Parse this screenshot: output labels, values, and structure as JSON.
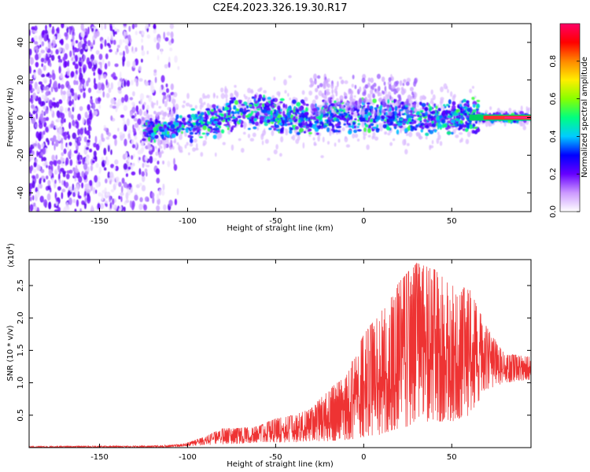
{
  "title": "C2E4.2023.326.19.30.R17",
  "chart_data": [
    {
      "type": "heatmap",
      "xlabel": "Height of straight line (km)",
      "ylabel": "Frequency (Hz)",
      "xlim": [
        -190,
        95
      ],
      "ylim": [
        -50,
        50
      ],
      "xticks": [
        -150,
        -100,
        -50,
        0,
        50
      ],
      "xtick_labels": [
        "-150",
        "-100",
        "-50",
        "0",
        "50"
      ],
      "yticks": [
        -40,
        -20,
        0,
        20,
        40
      ],
      "ytick_labels": [
        "-40",
        "-20",
        "0",
        "20",
        "40"
      ],
      "band_centerline": [
        {
          "x": -125,
          "y": -7
        },
        {
          "x": -110,
          "y": -6
        },
        {
          "x": -100,
          "y": -4
        },
        {
          "x": -90,
          "y": -2
        },
        {
          "x": -80,
          "y": 0
        },
        {
          "x": -70,
          "y": 2
        },
        {
          "x": -60,
          "y": 3
        },
        {
          "x": -50,
          "y": 1
        },
        {
          "x": -40,
          "y": 1
        },
        {
          "x": -30,
          "y": -1
        },
        {
          "x": -20,
          "y": 2
        },
        {
          "x": -10,
          "y": 1
        },
        {
          "x": 0,
          "y": 1
        },
        {
          "x": 10,
          "y": 2
        },
        {
          "x": 20,
          "y": 1
        },
        {
          "x": 30,
          "y": 0
        },
        {
          "x": 40,
          "y": 0
        },
        {
          "x": 50,
          "y": 0
        },
        {
          "x": 60,
          "y": 1
        },
        {
          "x": 70,
          "y": 0
        },
        {
          "x": 80,
          "y": 0
        },
        {
          "x": 95,
          "y": 0
        }
      ],
      "colorbar": {
        "label": "Normalized spectral amplitude",
        "ticks": [
          0.0,
          0.2,
          0.4,
          0.6,
          0.8
        ],
        "tick_labels": [
          "0.0",
          "0.2",
          "0.4",
          "0.6",
          "0.8"
        ],
        "colors": [
          "#ffffff",
          "#cc99ff",
          "#6600ff",
          "#0000ff",
          "#00ccff",
          "#00ff80",
          "#88ff00",
          "#ffee00",
          "#ff8800",
          "#ff0000",
          "#ff0066"
        ]
      },
      "grid": false
    },
    {
      "type": "line",
      "xlabel": "Height of straight line (km)",
      "ylabel": "SNR (10 * v/v)",
      "yscale_label": "(x10",
      "yscale_exp": "4",
      "yscale_close": ")",
      "xlim": [
        -190,
        95
      ],
      "ylim": [
        0,
        2.9
      ],
      "xticks": [
        -150,
        -100,
        -50,
        0,
        50
      ],
      "xtick_labels": [
        "-150",
        "-100",
        "-50",
        "0",
        "50"
      ],
      "yticks": [
        0.5,
        1.0,
        1.5,
        2.0,
        2.5
      ],
      "ytick_labels": [
        "0.5",
        "1.0",
        "1.5",
        "2.0",
        "2.5"
      ],
      "series_color": "#ee3333",
      "envelope": {
        "x": [
          -190,
          -120,
          -105,
          -100,
          -90,
          -80,
          -70,
          -60,
          -50,
          -40,
          -30,
          -20,
          -10,
          0,
          10,
          20,
          30,
          40,
          50,
          60,
          70,
          80,
          95
        ],
        "upper": [
          0.02,
          0.03,
          0.05,
          0.08,
          0.17,
          0.3,
          0.3,
          0.33,
          0.45,
          0.5,
          0.6,
          0.9,
          1.1,
          1.75,
          2.1,
          2.55,
          2.85,
          2.75,
          2.5,
          2.45,
          1.85,
          1.45,
          1.4
        ],
        "lower": [
          0.0,
          0.0,
          0.01,
          0.02,
          0.04,
          0.05,
          0.06,
          0.08,
          0.08,
          0.08,
          0.1,
          0.1,
          0.12,
          0.15,
          0.2,
          0.3,
          0.35,
          0.4,
          0.4,
          0.5,
          0.9,
          1.0,
          1.05
        ]
      },
      "grid": false
    }
  ]
}
